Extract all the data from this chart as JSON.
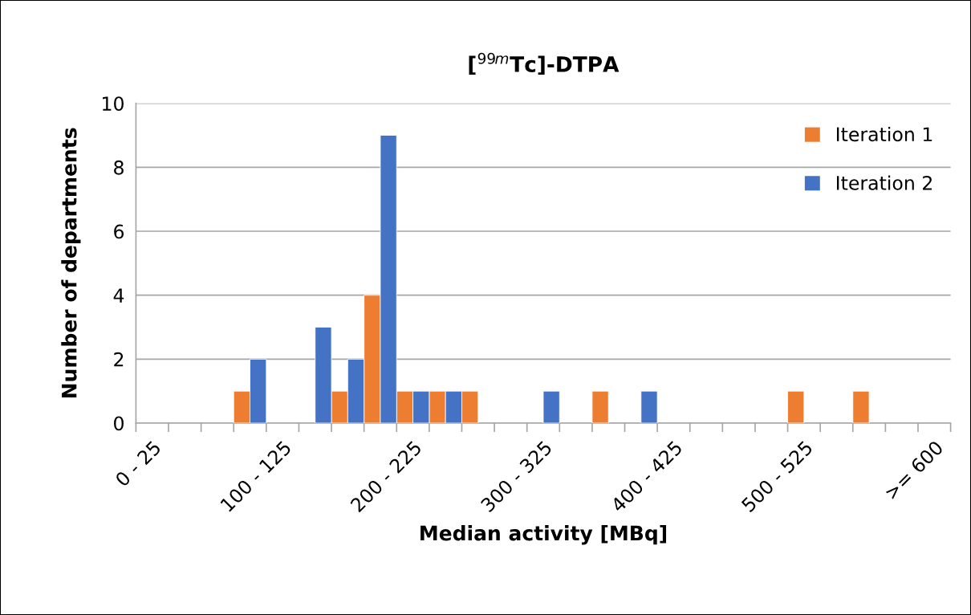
{
  "chart_data": {
    "type": "bar",
    "title": "[$^{99m}$Tc]-DTPA",
    "xlabel": "Median activity [MBq]",
    "ylabel": "Number of departments",
    "categories": [
      "0 - 25",
      null,
      null,
      null,
      "100 - 125",
      null,
      null,
      null,
      "200 - 225",
      null,
      null,
      null,
      "300 - 325",
      null,
      null,
      null,
      "400 - 425",
      null,
      null,
      null,
      "500 - 525",
      null,
      null,
      null,
      ">= 600"
    ],
    "series": [
      {
        "name": "Iteration 1",
        "color": "#ed7d31",
        "values": [
          0,
          0,
          0,
          1,
          0,
          0,
          1,
          4,
          1,
          1,
          1,
          0,
          0,
          0,
          1,
          0,
          0,
          0,
          0,
          0,
          1,
          0,
          1,
          0,
          0
        ]
      },
      {
        "name": "Iteration 2",
        "color": "#4472c4",
        "values": [
          0,
          0,
          0,
          2,
          0,
          3,
          2,
          9,
          1,
          1,
          0,
          0,
          1,
          0,
          0,
          1,
          0,
          0,
          0,
          0,
          0,
          0,
          0,
          0,
          0
        ]
      }
    ],
    "ylim": [
      0,
      10
    ],
    "yticks": [
      0,
      2,
      4,
      6,
      8,
      10
    ],
    "grid": "y",
    "legend": "top right"
  }
}
